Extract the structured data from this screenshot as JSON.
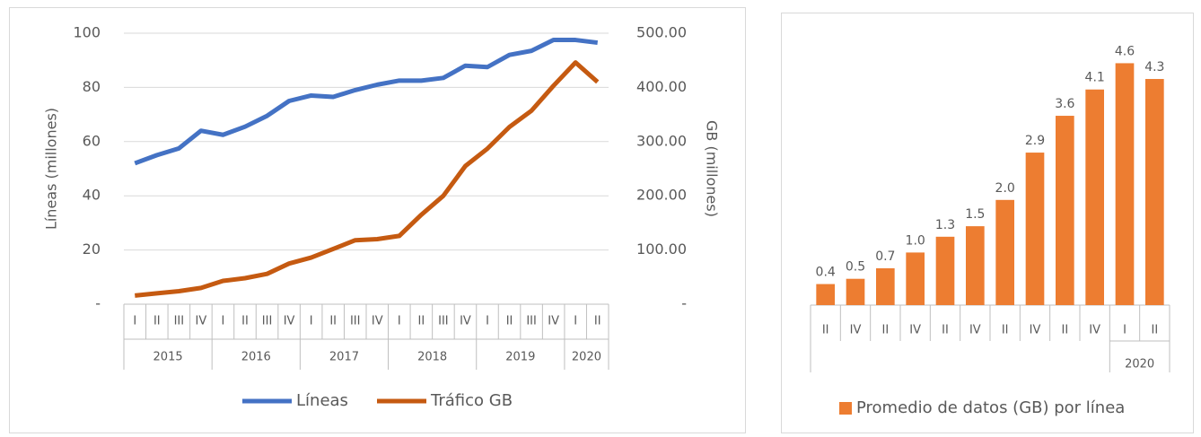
{
  "chart_data": [
    {
      "type": "line",
      "category_groups": [
        {
          "label": "2015",
          "categories": [
            "I",
            "II",
            "III",
            "IV"
          ]
        },
        {
          "label": "2016",
          "categories": [
            "I",
            "II",
            "III",
            "IV"
          ]
        },
        {
          "label": "2017",
          "categories": [
            "I",
            "II",
            "III",
            "IV"
          ]
        },
        {
          "label": "2018",
          "categories": [
            "I",
            "II",
            "III",
            "IV"
          ]
        },
        {
          "label": "2019",
          "categories": [
            "I",
            "II",
            "III",
            "IV"
          ]
        },
        {
          "label": "2020",
          "categories": [
            "I",
            "II"
          ]
        }
      ],
      "series": [
        {
          "name": "Líneas",
          "color": "#4472c4",
          "values": [
            52,
            55,
            57.5,
            64,
            62.5,
            65.5,
            69.5,
            75,
            77,
            76.5,
            79,
            81,
            82.5,
            82.5,
            83.5,
            88,
            87.5,
            92,
            93.5,
            97.5,
            97.5,
            96.5
          ]
        },
        {
          "name": "Tráfico GB",
          "color": "#c55a11",
          "axis": "y2",
          "values": [
            16,
            20,
            24,
            30,
            43,
            48,
            56,
            75,
            86,
            102,
            118,
            120,
            126,
            165,
            200,
            255,
            287,
            327,
            357,
            403,
            446,
            410
          ]
        }
      ],
      "ylabel": "Líneas (millones)",
      "y2label": "GB (millones)",
      "ylim": [
        0,
        100
      ],
      "yticks": [
        {
          "value": 0,
          "label": "-"
        },
        20,
        40,
        60,
        80,
        100
      ],
      "y2lim": [
        0,
        500
      ],
      "y2ticks": [
        {
          "value": 0,
          "label": "-"
        },
        {
          "value": 100,
          "label": "100.00"
        },
        {
          "value": 200,
          "label": "200.00"
        },
        {
          "value": 300,
          "label": "300.00"
        },
        {
          "value": 400,
          "label": "400.00"
        },
        {
          "value": 500,
          "label": "500.00"
        }
      ],
      "grid": true,
      "legend": "bottom"
    },
    {
      "type": "bar",
      "category_groups": [
        {
          "label": null,
          "categories": [
            "II",
            "IV",
            "II",
            "IV",
            "II",
            "IV",
            "II",
            "IV",
            "II",
            "IV"
          ]
        },
        {
          "label": "2020",
          "categories": [
            "I",
            "II"
          ]
        }
      ],
      "series": [
        {
          "name": "Promedio de datos (GB) por línea",
          "color": "#ed7d31",
          "values": [
            0.4,
            0.5,
            0.7,
            1.0,
            1.3,
            1.5,
            2.0,
            2.9,
            3.6,
            4.1,
            4.6,
            4.3
          ],
          "value_labels": [
            "0.4",
            "0.5",
            "0.7",
            "1.0",
            "1.3",
            "1.5",
            "2.0",
            "2.9",
            "3.6",
            "4.1",
            "4.6",
            "4.3"
          ]
        }
      ],
      "ylim": [
        0,
        5
      ],
      "grid": false,
      "legend": "bottom"
    }
  ]
}
